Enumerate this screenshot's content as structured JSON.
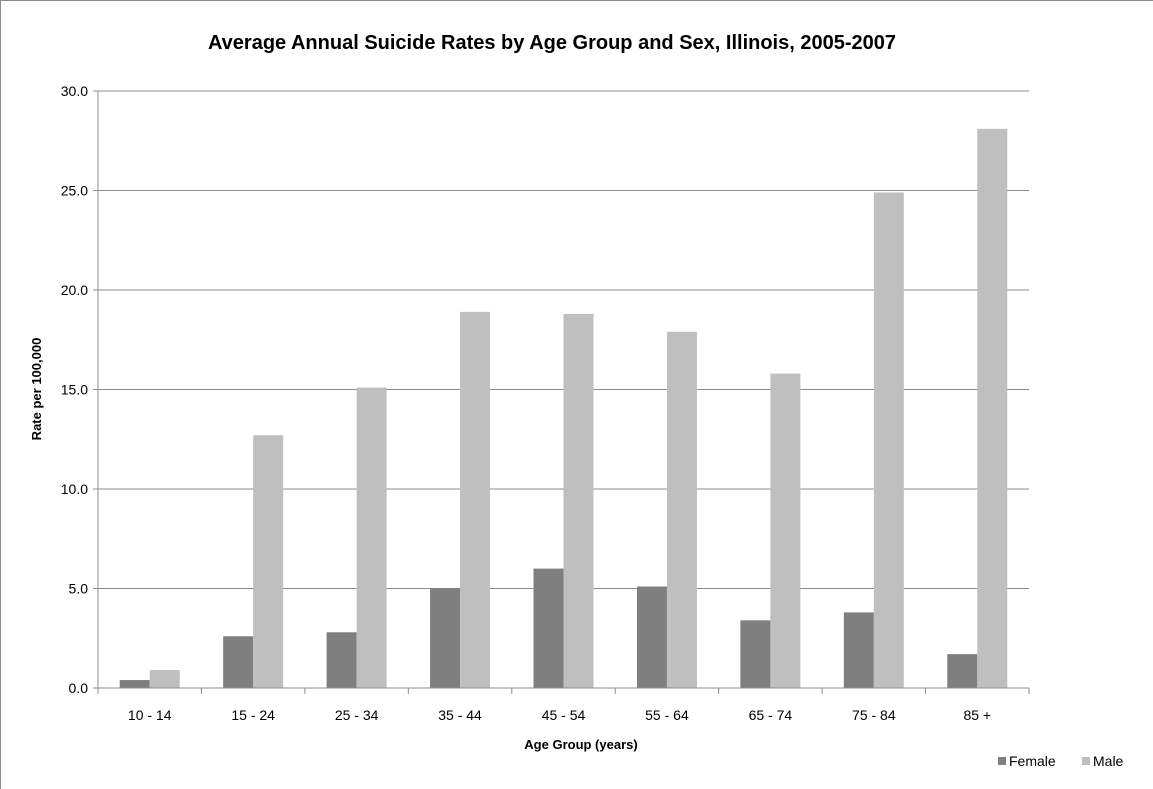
{
  "chart_data": {
    "type": "bar",
    "title": "Average Annual Suicide Rates by Age Group and Sex, Illinois, 2005-2007",
    "xlabel": "Age Group (years)",
    "ylabel": "Rate per 100,000",
    "categories": [
      "10 - 14",
      "15 - 24",
      "25 - 34",
      "35 - 44",
      "45 - 54",
      "55 - 64",
      "65 - 74",
      "75 - 84",
      "85 +"
    ],
    "series": [
      {
        "name": "Female",
        "color": "#7f7f7f",
        "values": [
          0.4,
          2.6,
          2.8,
          5.0,
          6.0,
          5.1,
          3.4,
          3.8,
          1.7
        ]
      },
      {
        "name": "Male",
        "color": "#bfbfbf",
        "values": [
          0.9,
          12.7,
          15.1,
          18.9,
          18.8,
          17.9,
          15.8,
          24.9,
          28.1
        ]
      }
    ],
    "ylim": [
      0,
      30
    ],
    "yticks": [
      "0.0",
      "5.0",
      "10.0",
      "15.0",
      "20.0",
      "25.0",
      "30.0"
    ],
    "grid": true,
    "legend_position": "bottom-right"
  }
}
